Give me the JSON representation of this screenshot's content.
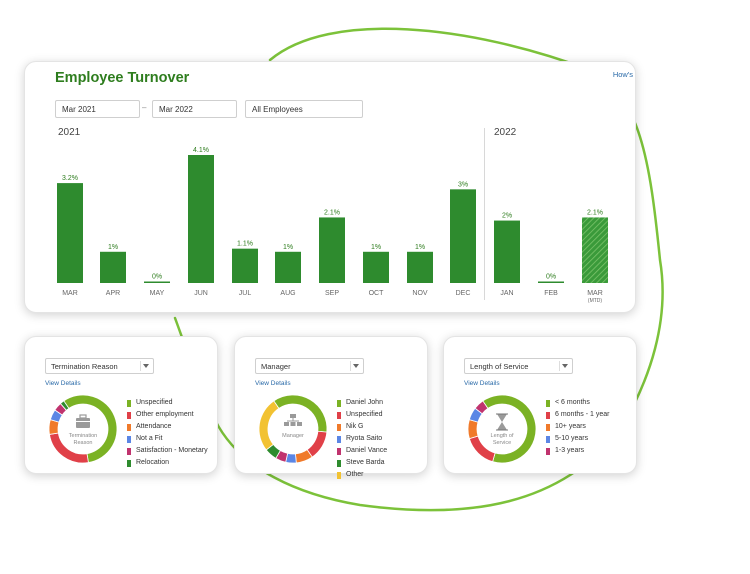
{
  "header": {
    "title": "Employee Turnover",
    "help_link": "How's"
  },
  "filters": {
    "start": "Mar 2021",
    "dash": "–",
    "end": "Mar 2022",
    "population": "All Employees"
  },
  "years": {
    "left": "2021",
    "right": "2022"
  },
  "colors": {
    "brand_green": "#2e7d1e",
    "bar_green": "#2e8b2e",
    "link_blue": "#2a6aa8"
  },
  "chart_data": {
    "type": "bar",
    "categories": [
      "MAR",
      "APR",
      "MAY",
      "JUN",
      "JUL",
      "AUG",
      "SEP",
      "OCT",
      "NOV",
      "DEC",
      "JAN",
      "FEB",
      "MAR"
    ],
    "values": [
      3.2,
      1,
      0,
      4.1,
      1.1,
      1,
      2.1,
      1,
      1,
      3,
      2,
      0,
      2.1
    ],
    "labels": [
      "3.2%",
      "1%",
      "0%",
      "4.1%",
      "1.1%",
      "1%",
      "2.1%",
      "1%",
      "1%",
      "3%",
      "2%",
      "0%",
      "2.1%"
    ],
    "sublabels": [
      "",
      "",
      "",
      "",
      "",
      "",
      "",
      "",
      "",
      "",
      "",
      "",
      "(MTD)"
    ],
    "ylim": [
      0,
      4.1
    ],
    "year_groups": [
      {
        "name": "2021",
        "count": 10
      },
      {
        "name": "2022",
        "count": 3
      }
    ],
    "hatched_last": true
  },
  "cards": [
    {
      "dropdown": "Termination Reason",
      "view_details": "View Details",
      "center_label": "Termination Reason",
      "center_icon": "briefcase-icon",
      "segments": [
        {
          "label": "Unspecified",
          "value": 0.57,
          "color": "#7bb224"
        },
        {
          "label": "Other employment",
          "value": 0.25,
          "color": "#e04048"
        },
        {
          "label": "Attendance",
          "value": 0.07,
          "color": "#f07a2b"
        },
        {
          "label": "Not a Fit",
          "value": 0.05,
          "color": "#5b86e5"
        },
        {
          "label": "Satisfaction - Monetary",
          "value": 0.04,
          "color": "#c0336e"
        },
        {
          "label": "Relocation",
          "value": 0.02,
          "color": "#2e8b2e"
        }
      ]
    },
    {
      "dropdown": "Manager",
      "view_details": "View Details",
      "center_label": "Manager",
      "center_icon": "org-chart-icon",
      "segments": [
        {
          "label": "Daniel John",
          "value": 0.36,
          "color": "#7bb224"
        },
        {
          "label": "Unspecified",
          "value": 0.14,
          "color": "#e04048"
        },
        {
          "label": "Nik G",
          "value": 0.08,
          "color": "#f07a2b"
        },
        {
          "label": "Ryota Saito",
          "value": 0.05,
          "color": "#5b86e5"
        },
        {
          "label": "Daniel Vance",
          "value": 0.05,
          "color": "#c0336e"
        },
        {
          "label": "Steve Barda",
          "value": 0.06,
          "color": "#2e8b2e"
        },
        {
          "label": "Other",
          "value": 0.26,
          "color": "#f2c232"
        }
      ]
    },
    {
      "dropdown": "Length of Service",
      "view_details": "View Details",
      "center_label": "Length of Service",
      "center_icon": "hourglass-icon",
      "segments": [
        {
          "label": "< 6 months",
          "value": 0.64,
          "color": "#7bb224"
        },
        {
          "label": "6 months - 1 year",
          "value": 0.16,
          "color": "#e04048"
        },
        {
          "label": "10+ years",
          "value": 0.09,
          "color": "#f07a2b"
        },
        {
          "label": "5-10 years",
          "value": 0.06,
          "color": "#5b86e5"
        },
        {
          "label": "1-3 years",
          "value": 0.05,
          "color": "#c0336e"
        }
      ]
    }
  ]
}
